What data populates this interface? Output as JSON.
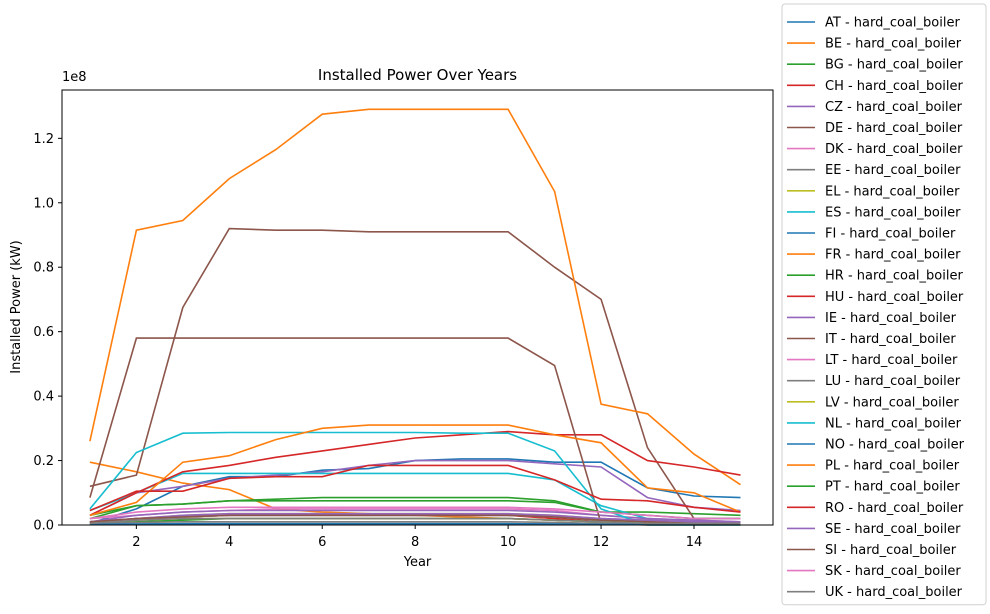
{
  "chart_data": {
    "type": "line",
    "title": "Installed Power Over Years",
    "xlabel": "Year",
    "ylabel": "Installed Power (kW)",
    "y_multiplier": "1e8",
    "xlim": [
      0.4,
      15.7
    ],
    "ylim": [
      0,
      1.35
    ],
    "x_ticks": [
      2,
      4,
      6,
      8,
      10,
      12,
      14
    ],
    "x_tick_labels": [
      "2",
      "4",
      "6",
      "8",
      "10",
      "12",
      "14"
    ],
    "y_ticks": [
      0,
      0.2,
      0.4,
      0.6,
      0.8,
      1.0,
      1.2
    ],
    "y_tick_labels": [
      "0.0",
      "0.2",
      "0.4",
      "0.6",
      "0.8",
      "1.0",
      "1.2"
    ],
    "legend_position": "outside-right",
    "x": [
      1,
      2,
      3,
      4,
      5,
      6,
      7,
      8,
      9,
      10,
      11,
      12,
      13,
      14,
      15
    ],
    "series": [
      {
        "name": "AT - hard_coal_boiler",
        "color": "#1f77b4",
        "values": [
          0.005,
          0.05,
          0.12,
          0.15,
          0.15,
          0.17,
          0.175,
          0.2,
          0.205,
          0.205,
          0.195,
          0.195,
          0.115,
          0.09,
          0.085
        ]
      },
      {
        "name": "BE - hard_coal_boiler",
        "color": "#ff7f0e",
        "values": [
          0.195,
          0.165,
          0.13,
          0.11,
          0.05,
          0.04,
          0.035,
          0.03,
          0.025,
          0.02,
          0.015,
          0.01,
          0.01,
          0.005,
          0.005
        ]
      },
      {
        "name": "BG - hard_coal_boiler",
        "color": "#2ca02c",
        "values": [
          0.03,
          0.06,
          0.065,
          0.075,
          0.08,
          0.085,
          0.085,
          0.085,
          0.085,
          0.085,
          0.075,
          0.04,
          0.04,
          0.035,
          0.03
        ]
      },
      {
        "name": "CH - hard_coal_boiler",
        "color": "#d62728",
        "values": [
          0.01,
          0.02,
          0.025,
          0.03,
          0.03,
          0.03,
          0.03,
          0.03,
          0.03,
          0.03,
          0.02,
          0.01,
          0.01,
          0.005,
          0.005
        ]
      },
      {
        "name": "CZ - hard_coal_boiler",
        "color": "#9467bd",
        "values": [
          0.03,
          0.1,
          0.12,
          0.145,
          0.155,
          0.165,
          0.185,
          0.2,
          0.2,
          0.2,
          0.19,
          0.18,
          0.085,
          0.055,
          0.045
        ]
      },
      {
        "name": "DE - hard_coal_boiler",
        "color": "#8c564b",
        "values": [
          0.12,
          0.155,
          0.675,
          0.92,
          0.915,
          0.915,
          0.91,
          0.91,
          0.91,
          0.91,
          0.8,
          0.7,
          0.24,
          0.02,
          0.02
        ]
      },
      {
        "name": "DK - hard_coal_boiler",
        "color": "#e377c2",
        "values": [
          0.02,
          0.03,
          0.04,
          0.045,
          0.05,
          0.05,
          0.05,
          0.05,
          0.05,
          0.05,
          0.045,
          0.03,
          0.02,
          0.015,
          0.01
        ]
      },
      {
        "name": "EE - hard_coal_boiler",
        "color": "#7f7f7f",
        "values": [
          0.002,
          0.003,
          0.004,
          0.004,
          0.004,
          0.004,
          0.004,
          0.004,
          0.004,
          0.004,
          0.003,
          0.002,
          0.002,
          0.001,
          0.001
        ]
      },
      {
        "name": "EL - hard_coal_boiler",
        "color": "#bcbd22",
        "values": [
          0.005,
          0.02,
          0.03,
          0.035,
          0.035,
          0.035,
          0.035,
          0.035,
          0.035,
          0.035,
          0.03,
          0.02,
          0.015,
          0.01,
          0.01
        ]
      },
      {
        "name": "ES - hard_coal_boiler",
        "color": "#17becf",
        "values": [
          0.045,
          0.1,
          0.16,
          0.16,
          0.16,
          0.16,
          0.16,
          0.16,
          0.16,
          0.16,
          0.14,
          0.06,
          0.02,
          0.01,
          0.01
        ]
      },
      {
        "name": "FI - hard_coal_boiler",
        "color": "#1f77b4",
        "values": [
          0.01,
          0.02,
          0.025,
          0.03,
          0.03,
          0.03,
          0.03,
          0.03,
          0.03,
          0.03,
          0.025,
          0.015,
          0.01,
          0.005,
          0.005
        ]
      },
      {
        "name": "FR - hard_coal_boiler",
        "color": "#ff7f0e",
        "values": [
          0.26,
          0.915,
          0.945,
          1.075,
          1.165,
          1.275,
          1.29,
          1.29,
          1.29,
          1.29,
          1.035,
          0.375,
          0.345,
          0.22,
          0.125
        ]
      },
      {
        "name": "HR - hard_coal_boiler",
        "color": "#2ca02c",
        "values": [
          0.005,
          0.01,
          0.015,
          0.02,
          0.02,
          0.02,
          0.02,
          0.02,
          0.02,
          0.02,
          0.015,
          0.01,
          0.005,
          0.005,
          0.005
        ]
      },
      {
        "name": "HU - hard_coal_boiler",
        "color": "#d62728",
        "values": [
          0.03,
          0.1,
          0.165,
          0.185,
          0.21,
          0.23,
          0.25,
          0.27,
          0.28,
          0.29,
          0.28,
          0.28,
          0.2,
          0.18,
          0.155
        ]
      },
      {
        "name": "IE - hard_coal_boiler",
        "color": "#9467bd",
        "values": [
          0.01,
          0.03,
          0.04,
          0.045,
          0.045,
          0.045,
          0.045,
          0.045,
          0.045,
          0.045,
          0.04,
          0.03,
          0.02,
          0.015,
          0.01
        ]
      },
      {
        "name": "IT - hard_coal_boiler",
        "color": "#8c564b",
        "values": [
          0.085,
          0.58,
          0.58,
          0.58,
          0.58,
          0.58,
          0.58,
          0.58,
          0.58,
          0.58,
          0.495,
          0.005,
          0.0,
          0.0,
          0.0
        ]
      },
      {
        "name": "LT - hard_coal_boiler",
        "color": "#e377c2",
        "values": [
          0.01,
          0.02,
          0.025,
          0.03,
          0.03,
          0.03,
          0.03,
          0.03,
          0.03,
          0.03,
          0.025,
          0.02,
          0.015,
          0.01,
          0.01
        ]
      },
      {
        "name": "LU - hard_coal_boiler",
        "color": "#7f7f7f",
        "values": [
          0.005,
          0.008,
          0.01,
          0.01,
          0.01,
          0.01,
          0.01,
          0.01,
          0.01,
          0.01,
          0.008,
          0.005,
          0.004,
          0.003,
          0.002
        ]
      },
      {
        "name": "LV - hard_coal_boiler",
        "color": "#bcbd22",
        "values": [
          0.01,
          0.015,
          0.02,
          0.02,
          0.02,
          0.02,
          0.02,
          0.02,
          0.02,
          0.02,
          0.015,
          0.01,
          0.008,
          0.005,
          0.005
        ]
      },
      {
        "name": "NL - hard_coal_boiler",
        "color": "#17becf",
        "values": [
          0.05,
          0.225,
          0.285,
          0.287,
          0.287,
          0.287,
          0.287,
          0.287,
          0.285,
          0.285,
          0.23,
          0.05,
          0.0,
          0.0,
          0.0
        ]
      },
      {
        "name": "NO - hard_coal_boiler",
        "color": "#1f77b4",
        "values": [
          0.002,
          0.003,
          0.004,
          0.004,
          0.004,
          0.004,
          0.004,
          0.004,
          0.004,
          0.004,
          0.003,
          0.002,
          0.002,
          0.001,
          0.001
        ]
      },
      {
        "name": "PL - hard_coal_boiler",
        "color": "#ff7f0e",
        "values": [
          0.03,
          0.07,
          0.195,
          0.215,
          0.265,
          0.3,
          0.31,
          0.31,
          0.31,
          0.31,
          0.28,
          0.255,
          0.115,
          0.1,
          0.04
        ]
      },
      {
        "name": "PT - hard_coal_boiler",
        "color": "#2ca02c",
        "values": [
          0.02,
          0.06,
          0.065,
          0.075,
          0.075,
          0.075,
          0.075,
          0.075,
          0.075,
          0.075,
          0.07,
          0.04,
          0.03,
          0.02,
          0.02
        ]
      },
      {
        "name": "RO - hard_coal_boiler",
        "color": "#d62728",
        "values": [
          0.045,
          0.105,
          0.105,
          0.145,
          0.15,
          0.15,
          0.185,
          0.185,
          0.185,
          0.185,
          0.14,
          0.08,
          0.075,
          0.055,
          0.04
        ]
      },
      {
        "name": "SE - hard_coal_boiler",
        "color": "#9467bd",
        "values": [
          0.01,
          0.02,
          0.03,
          0.035,
          0.035,
          0.035,
          0.035,
          0.035,
          0.035,
          0.035,
          0.03,
          0.02,
          0.015,
          0.01,
          0.01
        ]
      },
      {
        "name": "SI - hard_coal_boiler",
        "color": "#8c564b",
        "values": [
          0.01,
          0.02,
          0.025,
          0.03,
          0.03,
          0.03,
          0.03,
          0.03,
          0.03,
          0.03,
          0.025,
          0.015,
          0.01,
          0.005,
          0.005
        ]
      },
      {
        "name": "SK - hard_coal_boiler",
        "color": "#e377c2",
        "values": [
          0.02,
          0.04,
          0.05,
          0.055,
          0.055,
          0.055,
          0.055,
          0.055,
          0.055,
          0.055,
          0.05,
          0.04,
          0.03,
          0.02,
          0.02
        ]
      },
      {
        "name": "UK - hard_coal_boiler",
        "color": "#7f7f7f",
        "values": [
          0.005,
          0.015,
          0.02,
          0.02,
          0.02,
          0.02,
          0.02,
          0.02,
          0.02,
          0.02,
          0.015,
          0.01,
          0.005,
          0.005,
          0.005
        ]
      }
    ]
  }
}
